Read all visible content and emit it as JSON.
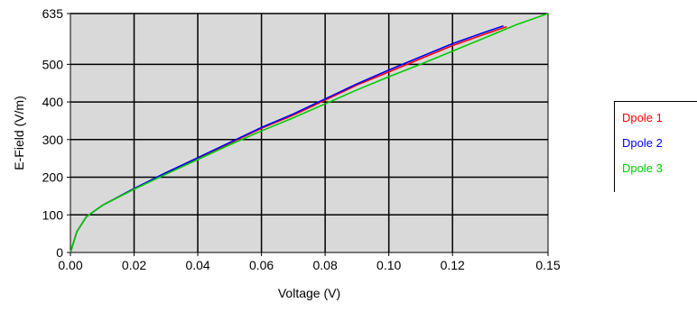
{
  "chart_data": {
    "type": "line",
    "xlabel": "Voltage (V)",
    "ylabel": "E-Field (V/m)",
    "xlim": [
      0,
      0.15
    ],
    "ylim": [
      0,
      635
    ],
    "x_ticks": [
      {
        "value": 0.0,
        "label": "0.00"
      },
      {
        "value": 0.02,
        "label": "0.02"
      },
      {
        "value": 0.04,
        "label": "0.04"
      },
      {
        "value": 0.06,
        "label": "0.06"
      },
      {
        "value": 0.08,
        "label": "0.08"
      },
      {
        "value": 0.1,
        "label": "0.10"
      },
      {
        "value": 0.12,
        "label": "0.12"
      },
      {
        "value": 0.15,
        "label": "0.15"
      }
    ],
    "y_ticks": [
      {
        "value": 0,
        "label": "0"
      },
      {
        "value": 100,
        "label": "100"
      },
      {
        "value": 200,
        "label": "200"
      },
      {
        "value": 300,
        "label": "300"
      },
      {
        "value": 400,
        "label": "400"
      },
      {
        "value": 500,
        "label": "500"
      },
      {
        "value": 635,
        "label": "635"
      }
    ],
    "grid": true,
    "legend_position": "right",
    "series": [
      {
        "name": "Dpole 1",
        "color": "#ff0000",
        "x": [
          0,
          0.002,
          0.005,
          0.01,
          0.02,
          0.03,
          0.04,
          0.05,
          0.06,
          0.07,
          0.08,
          0.09,
          0.1,
          0.11,
          0.12,
          0.13,
          0.137
        ],
        "y": [
          0,
          55,
          95,
          125,
          170,
          210,
          250,
          290,
          330,
          365,
          405,
          445,
          480,
          515,
          550,
          580,
          600
        ]
      },
      {
        "name": "Dpole 2",
        "color": "#0000ff",
        "x": [
          0,
          0.002,
          0.005,
          0.01,
          0.02,
          0.03,
          0.04,
          0.05,
          0.06,
          0.07,
          0.08,
          0.09,
          0.1,
          0.11,
          0.12,
          0.13,
          0.136
        ],
        "y": [
          0,
          55,
          95,
          125,
          170,
          212,
          252,
          292,
          332,
          368,
          408,
          448,
          485,
          520,
          555,
          585,
          602
        ]
      },
      {
        "name": "Dpole 3",
        "color": "#00cc00",
        "x": [
          0,
          0.002,
          0.005,
          0.01,
          0.02,
          0.03,
          0.04,
          0.05,
          0.06,
          0.07,
          0.08,
          0.09,
          0.1,
          0.11,
          0.12,
          0.13,
          0.14,
          0.15
        ],
        "y": [
          0,
          55,
          95,
          125,
          168,
          208,
          247,
          286,
          323,
          358,
          395,
          432,
          467,
          500,
          535,
          570,
          605,
          635
        ]
      }
    ]
  }
}
